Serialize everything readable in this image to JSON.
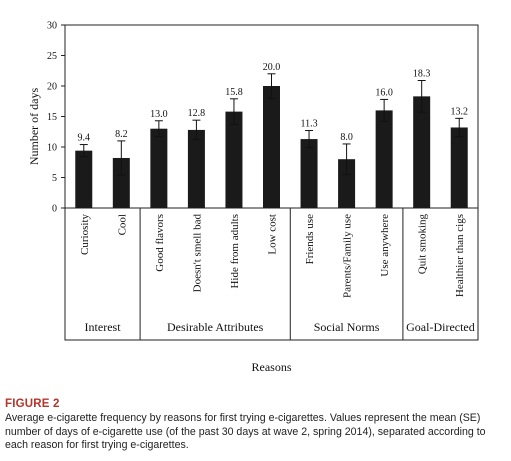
{
  "figure": {
    "label": "FIGURE 2",
    "caption": "Average e-cigarette frequency by reasons for first trying e-cigarettes. Values represent the mean (SE) number of days of e-cigarette use (of the past 30 days at wave 2, spring 2014), separated according to each reason for first trying e-cigarettes."
  },
  "chart_data": {
    "type": "bar",
    "title": "",
    "xlabel": "Reasons",
    "ylabel": "Number of days",
    "ylim": [
      0,
      30
    ],
    "yticks": [
      0,
      5,
      10,
      15,
      20,
      25,
      30
    ],
    "grid": false,
    "legend": "none",
    "bar_color": "#1a1a1a",
    "categories": [
      "Curiosity",
      "Cool",
      "Good flavors",
      "Doesn't smell bad",
      "Hide from adults",
      "Low cost",
      "Friends use",
      "Parents/Family use",
      "Use anywhere",
      "Quit smoking",
      "Healthier than cigs"
    ],
    "values": [
      9.4,
      8.2,
      13.0,
      12.8,
      15.8,
      20.0,
      11.3,
      8.0,
      16.0,
      18.3,
      13.2
    ],
    "value_labels": [
      "9.4",
      "8.2",
      "13.0",
      "12.8",
      "15.8",
      "20.0",
      "11.3",
      "8.0",
      "16.0",
      "18.3",
      "13.2"
    ],
    "errors": [
      1.0,
      2.8,
      1.3,
      1.6,
      2.1,
      2.0,
      1.4,
      2.5,
      1.8,
      2.6,
      1.5
    ],
    "groups": [
      {
        "name": "Interest",
        "start": 0,
        "end": 1
      },
      {
        "name": "Desirable Attributes",
        "start": 2,
        "end": 5
      },
      {
        "name": "Social Norms",
        "start": 6,
        "end": 8
      },
      {
        "name": "Goal-Directed",
        "start": 9,
        "end": 10
      }
    ]
  }
}
